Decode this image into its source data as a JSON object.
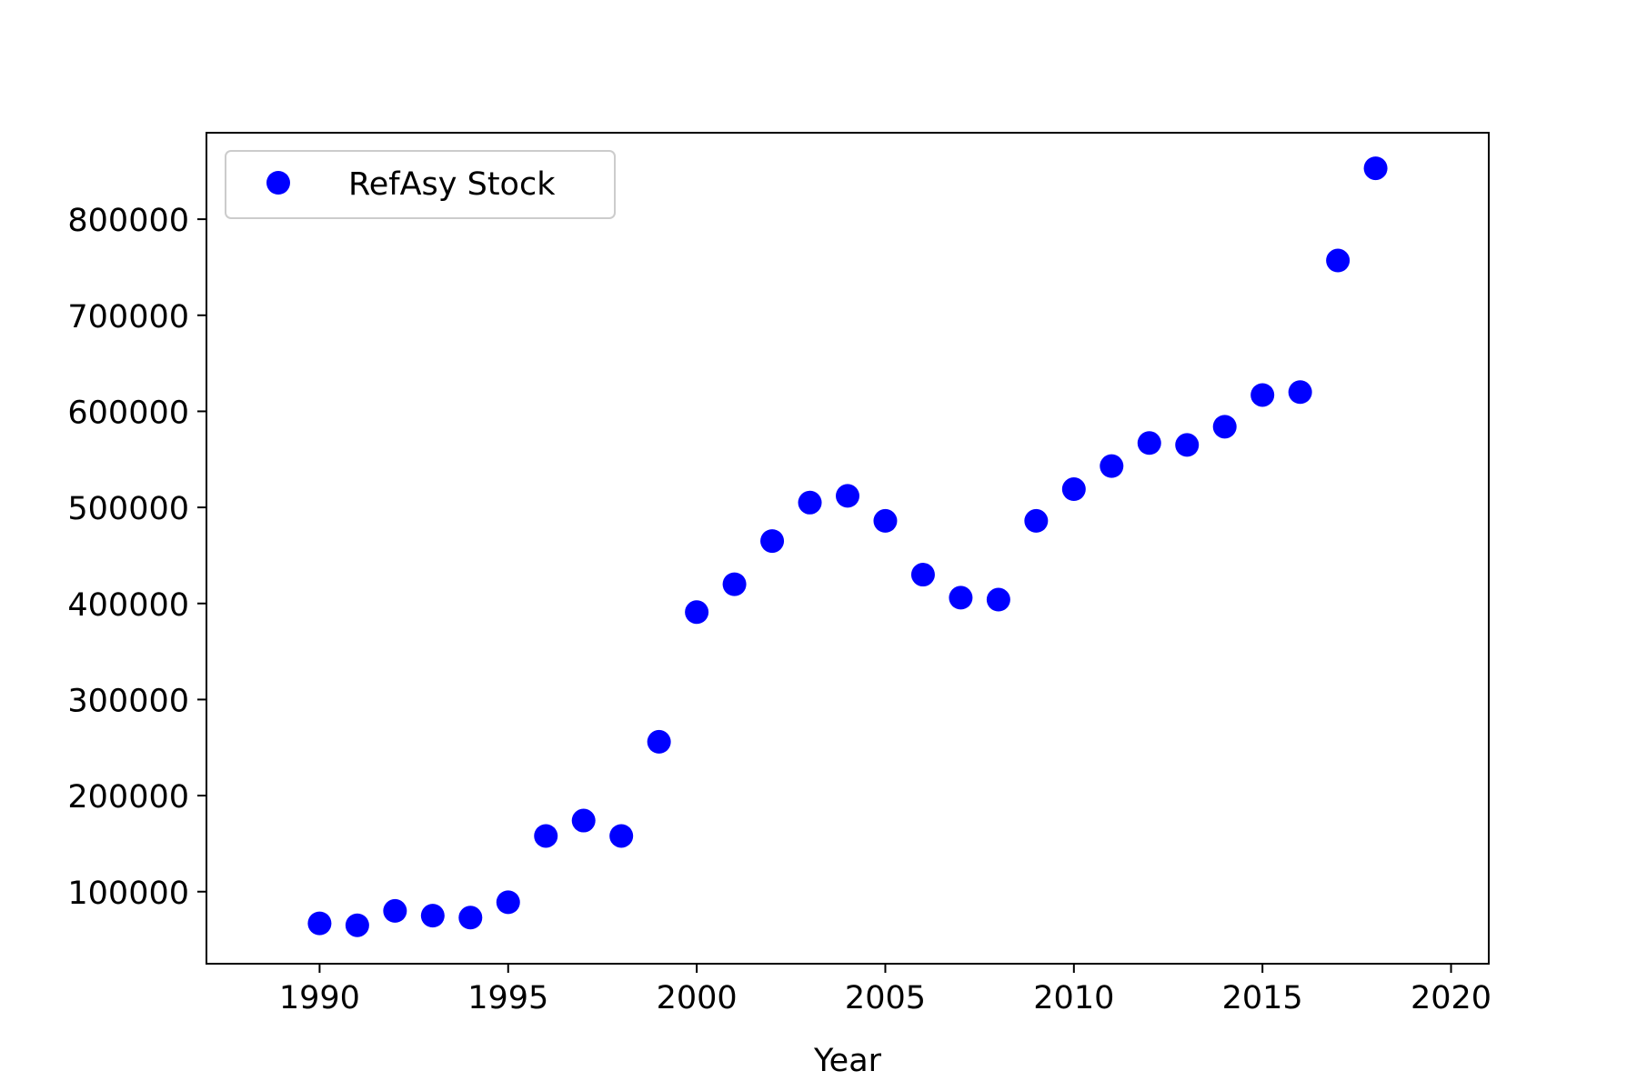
{
  "chart_data": {
    "type": "scatter",
    "title": "",
    "xlabel": "Year",
    "ylabel": "",
    "xlim": [
      1987,
      2021
    ],
    "ylim": [
      25000,
      890000
    ],
    "xticks": [
      1990,
      1995,
      2000,
      2005,
      2010,
      2015,
      2020
    ],
    "yticks": [
      100000,
      200000,
      300000,
      400000,
      500000,
      600000,
      700000,
      800000
    ],
    "grid": false,
    "legend_position": "upper-left",
    "series": [
      {
        "name": "RefAsy Stock",
        "color": "#0000ff",
        "marker": "circle",
        "x": [
          1990,
          1991,
          1992,
          1993,
          1994,
          1995,
          1996,
          1997,
          1998,
          1999,
          2000,
          2001,
          2002,
          2003,
          2004,
          2005,
          2006,
          2007,
          2008,
          2009,
          2010,
          2011,
          2012,
          2013,
          2014,
          2015,
          2016,
          2017,
          2018
        ],
        "y": [
          67000,
          65000,
          80000,
          75000,
          73000,
          89000,
          158000,
          174000,
          158000,
          256000,
          391000,
          420000,
          465000,
          505000,
          512000,
          486000,
          430000,
          406000,
          404000,
          486000,
          519000,
          543000,
          567000,
          565000,
          584000,
          617000,
          620000,
          757000,
          853000
        ]
      }
    ]
  }
}
